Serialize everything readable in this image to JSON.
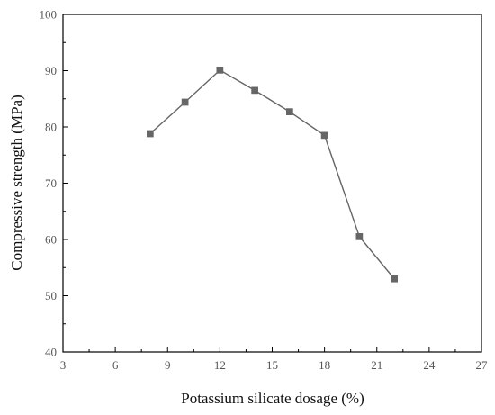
{
  "chart_data": {
    "type": "line",
    "xlabel": "Potassium silicate dosage (%)",
    "ylabel": "Compressive strength (MPa)",
    "xlim": [
      3,
      27
    ],
    "ylim": [
      40,
      100
    ],
    "xticks": [
      3,
      6,
      9,
      12,
      15,
      18,
      21,
      24,
      27
    ],
    "yticks": [
      40,
      50,
      60,
      70,
      80,
      90,
      100
    ],
    "grid": false,
    "legend": "none",
    "series": [
      {
        "color": "#666666",
        "marker": "square",
        "x": [
          8,
          10,
          12,
          14,
          16,
          18,
          20,
          22
        ],
        "y": [
          78.8,
          84.4,
          90.1,
          86.5,
          82.7,
          78.5,
          60.5,
          53.0
        ]
      }
    ]
  }
}
